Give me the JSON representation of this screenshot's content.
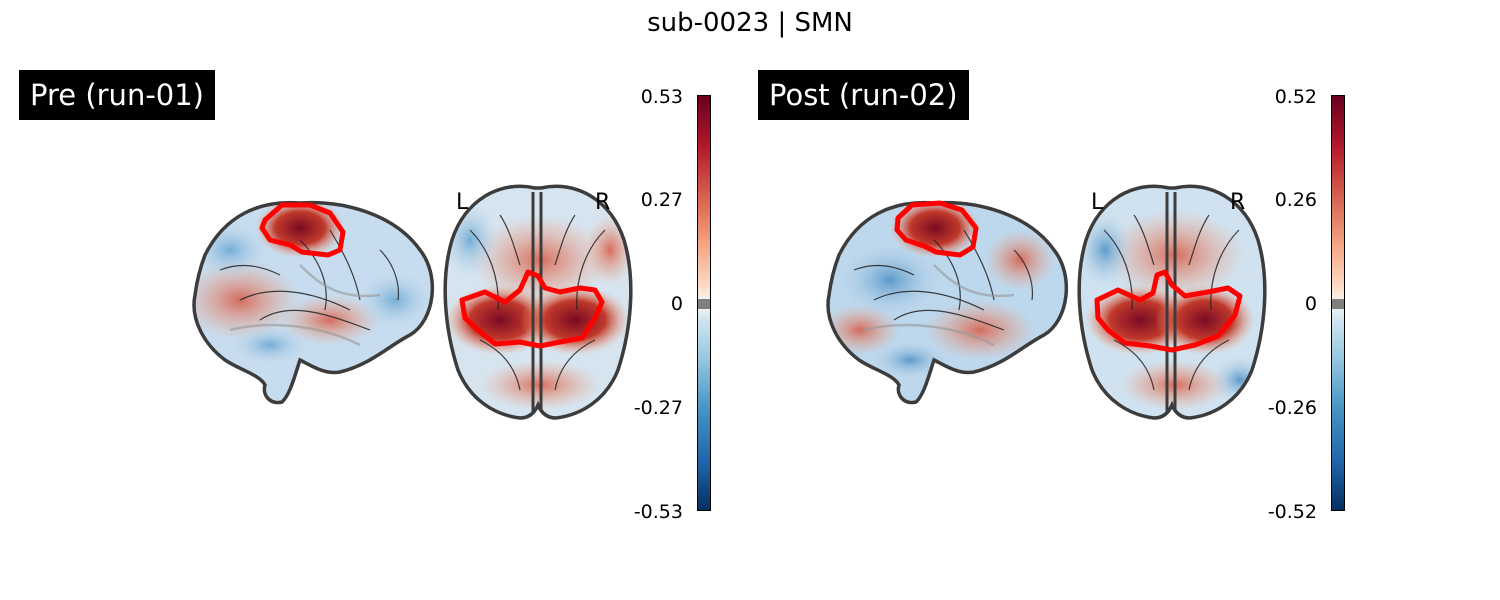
{
  "figure_title": "sub-0023 | SMN",
  "panels": [
    {
      "title": "Pre (run-01)",
      "left_label": "L",
      "right_label": "R",
      "colorbar": {
        "ticks": [
          "0.53",
          "0.27",
          "0",
          "-0.27",
          "-0.53"
        ],
        "max": 0.53,
        "min": -0.53
      }
    },
    {
      "title": "Post (run-02)",
      "left_label": "L",
      "right_label": "R",
      "colorbar": {
        "ticks": [
          "0.52",
          "0.26",
          "0",
          "-0.26",
          "-0.52"
        ],
        "max": 0.52,
        "min": -0.52
      }
    }
  ],
  "colors": {
    "contour": "#ff0000",
    "brain_outline": "#3c3c3c",
    "positive_max": "#67001f",
    "negative_max": "#053061",
    "title_bg": "#000000",
    "title_text": "#ffffff"
  },
  "colormap": "RdBu_r"
}
